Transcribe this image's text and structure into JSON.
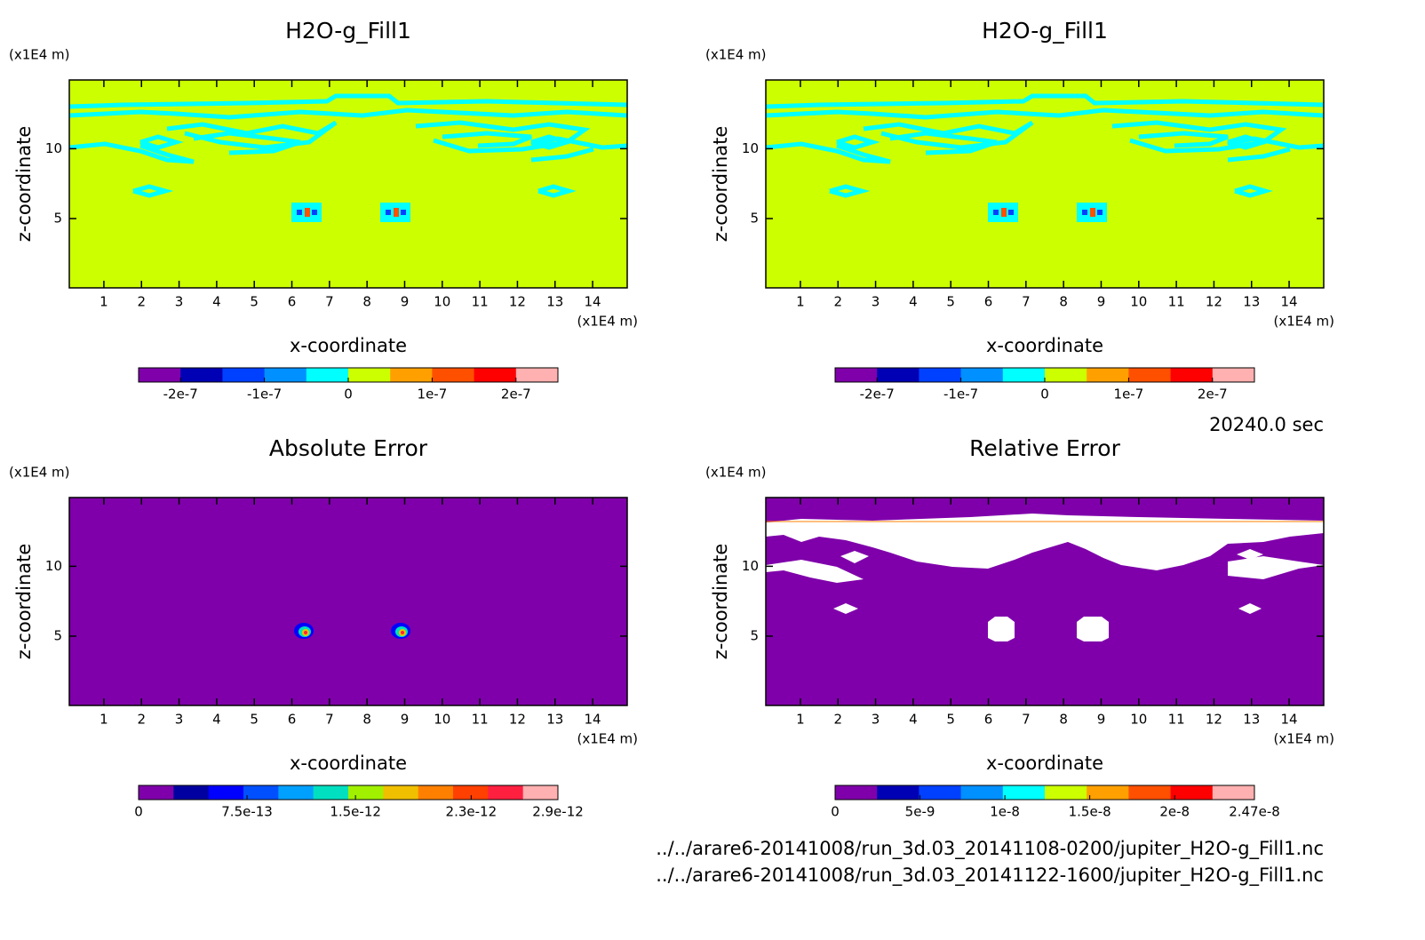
{
  "chart_data": [
    {
      "type": "contour",
      "title": "H2O-g_Fill1",
      "x_label": "x-coordinate",
      "y_label": "z-coordinate",
      "x_unit": "(x1E4 m)",
      "y_unit": "(x1E4 m)",
      "xlim": [
        0.08,
        14.92
      ],
      "ylim": [
        0.04,
        14.92
      ],
      "xticks": [
        1,
        2,
        3,
        4,
        5,
        6,
        7,
        8,
        9,
        10,
        11,
        12,
        13,
        14
      ],
      "yticks": [
        5,
        10
      ],
      "colorbar": {
        "colors": [
          "#7f00aa",
          "#0000b4",
          "#0040ff",
          "#0090ff",
          "#00ffff",
          "#ccff00",
          "#ffa000",
          "#ff5000",
          "#ff0000",
          "#ffb0b0"
        ],
        "lim": [
          -2.5e-07,
          2.5e-07
        ],
        "ticks": [
          {
            "value": -2e-07,
            "label": "-2e-7"
          },
          {
            "value": -1e-07,
            "label": "-1e-7"
          },
          0,
          {
            "value": 1e-07,
            "label": "1e-7"
          },
          {
            "value": 2e-07,
            "label": "2e-7"
          }
        ]
      }
    },
    {
      "type": "contour",
      "title": "H2O-g_Fill1",
      "x_label": "x-coordinate",
      "y_label": "z-coordinate",
      "x_unit": "(x1E4 m)",
      "y_unit": "(x1E4 m)",
      "xlim": [
        0.08,
        14.92
      ],
      "ylim": [
        0.04,
        14.92
      ],
      "xticks": [
        1,
        2,
        3,
        4,
        5,
        6,
        7,
        8,
        9,
        10,
        11,
        12,
        13,
        14
      ],
      "yticks": [
        5,
        10
      ],
      "colorbar": {
        "colors": [
          "#7f00aa",
          "#0000b4",
          "#0040ff",
          "#0090ff",
          "#00ffff",
          "#ccff00",
          "#ffa000",
          "#ff5000",
          "#ff0000",
          "#ffb0b0"
        ],
        "lim": [
          -2.5e-07,
          2.5e-07
        ],
        "ticks": [
          {
            "value": -2e-07,
            "label": "-2e-7"
          },
          {
            "value": -1e-07,
            "label": "-1e-7"
          },
          0,
          {
            "value": 1e-07,
            "label": "1e-7"
          },
          {
            "value": 2e-07,
            "label": "2e-7"
          }
        ]
      }
    },
    {
      "type": "contour",
      "title": "Absolute Error",
      "x_label": "x-coordinate",
      "y_label": "z-coordinate",
      "x_unit": "(x1E4 m)",
      "y_unit": "(x1E4 m)",
      "xlim": [
        0.08,
        14.92
      ],
      "ylim": [
        0.04,
        14.92
      ],
      "xticks": [
        1,
        2,
        3,
        4,
        5,
        6,
        7,
        8,
        9,
        10,
        11,
        12,
        13,
        14
      ],
      "yticks": [
        5,
        10
      ],
      "colorbar": {
        "colors": [
          "#7f00aa",
          "#0000a0",
          "#0000ff",
          "#0050ff",
          "#00a0ff",
          "#00e0c0",
          "#a0f000",
          "#f0c000",
          "#ff8000",
          "#ff4000",
          "#ff2040",
          "#ffb0b0"
        ],
        "lim": [
          0,
          2.9e-12
        ],
        "ticks": [
          0,
          {
            "value": 7.5e-13,
            "label": "7.5e-13"
          },
          {
            "value": 1.5e-12,
            "label": "1.5e-12"
          },
          {
            "value": 2.3e-12,
            "label": "2.3e-12"
          },
          {
            "value": 2.9e-12,
            "label": "2.9e-12"
          }
        ]
      }
    },
    {
      "type": "contour",
      "title": "Relative Error",
      "x_label": "x-coordinate",
      "y_label": "z-coordinate",
      "x_unit": "(x1E4 m)",
      "y_unit": "(x1E4 m)",
      "xlim": [
        0.08,
        14.92
      ],
      "ylim": [
        0.04,
        14.92
      ],
      "xticks": [
        1,
        2,
        3,
        4,
        5,
        6,
        7,
        8,
        9,
        10,
        11,
        12,
        13,
        14
      ],
      "yticks": [
        5,
        10
      ],
      "colorbar": {
        "colors": [
          "#7f00aa",
          "#0000b4",
          "#0040ff",
          "#0090ff",
          "#00ffff",
          "#ccff00",
          "#ffa000",
          "#ff5000",
          "#ff0000",
          "#ffb0b0"
        ],
        "lim": [
          0,
          2.47e-08
        ],
        "ticks": [
          0,
          {
            "value": 5e-09,
            "label": "5e-9"
          },
          {
            "value": 1e-08,
            "label": "1e-8"
          },
          {
            "value": 1.5e-08,
            "label": "1.5e-8"
          },
          {
            "value": 2e-08,
            "label": "2e-8"
          },
          {
            "value": 2.47e-08,
            "label": "2.47e-8"
          }
        ]
      }
    }
  ],
  "time": "20240.0 sec",
  "files": [
    "../../arare6-20141008/run_3d.03_20141108-0200/jupiter_H2O-g_Fill1.nc",
    "../../arare6-20141008/run_3d.03_20141122-1600/jupiter_H2O-g_Fill1.nc"
  ]
}
